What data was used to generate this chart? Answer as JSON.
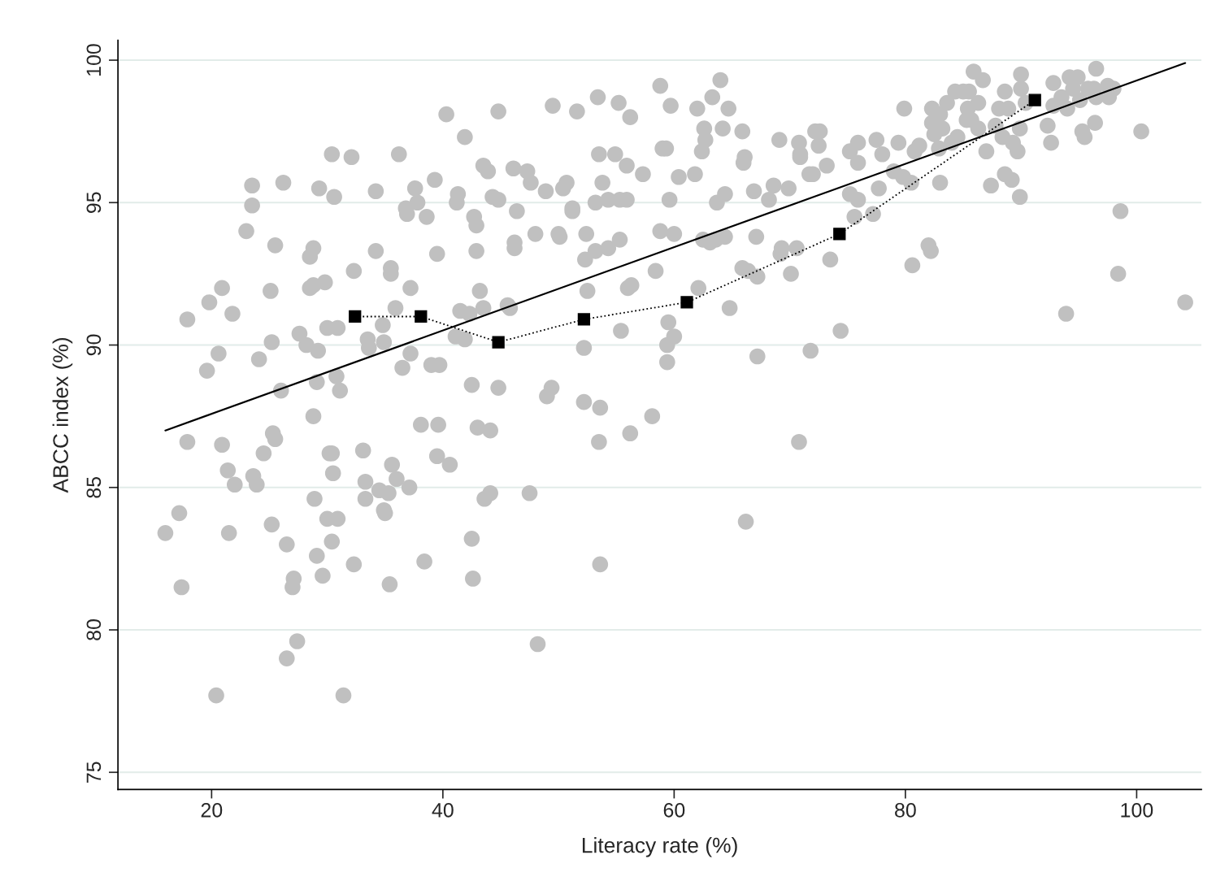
{
  "chart_data": {
    "type": "scatter",
    "xlabel": "Literacy rate (%)",
    "ylabel": "ABCC index (%)",
    "xlim": [
      11.9,
      105.6
    ],
    "ylim": [
      74.4,
      100.7
    ],
    "xticks": [
      20,
      40,
      60,
      80,
      100
    ],
    "yticks": [
      75,
      80,
      85,
      90,
      95,
      100
    ],
    "grid": "y",
    "series": [
      {
        "color": "#c0c0c0",
        "marker": "circle",
        "x": [
          16,
          17.2,
          17.4,
          17.9,
          17.9,
          19.6,
          19.8,
          20.6,
          20.9,
          20.9,
          20.4,
          21.4,
          21.5,
          21.8,
          22,
          23,
          23.5,
          23.5,
          23.6,
          23.9,
          24.1,
          24.5,
          25.1,
          25.2,
          25.3,
          25.5,
          25.2,
          25.5,
          26.2,
          26,
          26.5,
          26.5,
          27,
          27.1,
          27.4,
          27.6,
          28.2,
          28.5,
          28.5,
          28.8,
          28.8,
          28.8,
          28.9,
          29.1,
          29.1,
          29.2,
          29.3,
          29.6,
          29.8,
          30,
          30,
          30.2,
          30.4,
          30.4,
          30.5,
          30.4,
          30.6,
          30.8,
          30.9,
          30.9,
          31.1,
          31.4,
          32.1,
          32.3,
          32.3,
          33.1,
          33.3,
          33.3,
          33.5,
          33.6,
          34.2,
          34.2,
          34.5,
          34.8,
          34.9,
          34.9,
          35,
          35.3,
          35.4,
          35.5,
          35.5,
          35.6,
          35.9,
          36,
          36.2,
          36.5,
          36.8,
          36.9,
          37.2,
          37.2,
          37.1,
          37.6,
          37.8,
          38.1,
          38.4,
          38.6,
          39,
          39.3,
          39.5,
          39.5,
          39.6,
          39.7,
          40.3,
          40.6,
          41.1,
          41.2,
          41.3,
          41.5,
          41.9,
          41.9,
          42.3,
          42.5,
          42.5,
          42.6,
          42.7,
          42.9,
          42.9,
          43,
          43.2,
          43.5,
          43.5,
          43.6,
          43.9,
          44.1,
          44.1,
          44.3,
          44.8,
          44.8,
          44.8,
          45.6,
          45.8,
          46.2,
          46.2,
          46.1,
          46.4,
          47.3,
          47.5,
          47.6,
          48,
          48.2,
          48.9,
          49,
          49.4,
          49.5,
          50,
          50.1,
          50.4,
          50.7,
          51.2,
          51.2,
          51.6,
          52.2,
          52.2,
          52.3,
          52.4,
          52.5,
          53.2,
          53.2,
          53.4,
          53.5,
          53.5,
          53.6,
          53.6,
          53.8,
          54.3,
          54.3,
          54.9,
          55.2,
          55.3,
          55.4,
          55.3,
          55.9,
          55.9,
          56,
          56.2,
          56.2,
          56.3,
          57.3,
          58.1,
          58.4,
          58.8,
          58.8,
          59,
          59.3,
          59.4,
          59.4,
          59.5,
          59.6,
          59.7,
          60,
          60,
          60.4,
          61.8,
          62,
          62.1,
          62.4,
          62.5,
          62.6,
          62.7,
          63.1,
          63.3,
          63.6,
          63.7,
          64,
          64.2,
          64.4,
          64.4,
          64.7,
          64.8,
          65.9,
          65.9,
          66,
          66.1,
          66.2,
          66.4,
          66.9,
          67.1,
          67.2,
          67.2,
          68.2,
          68.6,
          69.1,
          69.2,
          69.3,
          69.9,
          70.1,
          70.6,
          70.8,
          70.9,
          70.9,
          70.8,
          71.7,
          71.8,
          72,
          72.2,
          72.6,
          72.5,
          73.2,
          73.5,
          74.4,
          75.2,
          75.2,
          75.6,
          75.9,
          75.9,
          75.9,
          77.2,
          77.5,
          77.7,
          78,
          79,
          79.4,
          79.8,
          79.9,
          80.5,
          80.6,
          80.8,
          81.2,
          82,
          82.2,
          82.3,
          82.3,
          82.5,
          82.9,
          83,
          83,
          83.2,
          83.6,
          84,
          84.3,
          84.5,
          85,
          85.3,
          85.5,
          85.4,
          85.7,
          85.9,
          86.3,
          86.3,
          86.7,
          87,
          87.4,
          87.8,
          88.1,
          88.4,
          88.6,
          88.6,
          88.9,
          89.2,
          89.3,
          89.7,
          89.9,
          89.9,
          90,
          90,
          90.4,
          92.3,
          92.6,
          92.8,
          92.8,
          93.5,
          93.9,
          94,
          94.2,
          94.5,
          94.9,
          95.1,
          95.3,
          95.5,
          95.8,
          96.3,
          96.4,
          96.5,
          96.5,
          97.5,
          97.6,
          98,
          98.4,
          98.6,
          100.4,
          104.2
        ],
        "values": [
          83.4,
          84.1,
          81.5,
          86.6,
          90.9,
          89.1,
          91.5,
          89.7,
          92,
          86.5,
          77.7,
          85.6,
          83.4,
          91.1,
          85.1,
          94,
          95.6,
          94.9,
          85.4,
          85.1,
          89.5,
          86.2,
          91.9,
          90.1,
          86.9,
          86.7,
          83.7,
          93.5,
          95.7,
          88.4,
          83,
          79,
          81.5,
          81.8,
          79.6,
          90.4,
          90,
          92,
          93.1,
          93.4,
          92.1,
          87.5,
          84.6,
          88.7,
          82.6,
          89.8,
          95.5,
          81.9,
          92.2,
          90.6,
          83.9,
          86.2,
          86.2,
          83.1,
          85.5,
          96.7,
          95.2,
          88.9,
          90.6,
          83.9,
          88.4,
          77.7,
          96.6,
          92.6,
          82.3,
          86.3,
          85.2,
          84.6,
          90.2,
          89.9,
          95.4,
          93.3,
          84.9,
          90.7,
          90.1,
          84.2,
          84.1,
          84.8,
          81.6,
          92.7,
          92.5,
          85.8,
          91.3,
          85.3,
          96.7,
          89.2,
          94.8,
          94.6,
          92,
          89.7,
          85,
          95.5,
          95,
          87.2,
          82.4,
          94.5,
          89.3,
          95.8,
          93.2,
          86.1,
          87.2,
          89.3,
          98.1,
          85.8,
          90.3,
          95,
          95.3,
          91.2,
          97.3,
          90.2,
          91.1,
          88.6,
          83.2,
          81.8,
          94.5,
          93.3,
          94.2,
          87.1,
          91.9,
          96.3,
          91.3,
          84.6,
          96.1,
          87,
          84.8,
          95.2,
          95.1,
          98.2,
          88.5,
          91.4,
          91.3,
          93.4,
          93.6,
          96.2,
          94.7,
          96.1,
          84.8,
          95.7,
          93.9,
          79.5,
          95.4,
          88.2,
          88.5,
          98.4,
          93.9,
          93.8,
          95.5,
          95.7,
          94.8,
          94.7,
          98.2,
          89.9,
          88,
          93,
          93.9,
          91.9,
          93.3,
          95,
          98.7,
          96.7,
          86.6,
          82.3,
          87.8,
          95.7,
          95.1,
          93.4,
          96.7,
          98.5,
          95.1,
          90.5,
          93.7,
          95.1,
          96.3,
          92,
          98,
          86.9,
          92.1,
          96,
          87.5,
          92.6,
          94,
          99.1,
          96.9,
          96.9,
          89.4,
          90,
          90.8,
          95.1,
          98.4,
          93.9,
          90.3,
          95.9,
          96,
          98.3,
          92,
          96.8,
          93.7,
          97.6,
          97.2,
          93.6,
          98.7,
          93.7,
          95,
          99.3,
          97.6,
          95.3,
          93.8,
          98.3,
          91.3,
          97.5,
          92.7,
          96.4,
          96.6,
          83.8,
          92.6,
          95.4,
          93.8,
          89.6,
          92.4,
          95.1,
          95.6,
          97.2,
          93.2,
          93.4,
          95.5,
          92.5,
          93.4,
          97.1,
          96.7,
          96.6,
          86.6,
          96,
          89.8,
          96,
          97.5,
          97.5,
          97,
          96.3,
          93,
          90.5,
          96.8,
          95.3,
          94.5,
          95.1,
          97.1,
          96.4,
          94.6,
          97.2,
          95.5,
          96.7,
          96.1,
          97.1,
          95.9,
          98.3,
          95.7,
          92.8,
          96.8,
          97,
          93.5,
          93.3,
          97.8,
          98.3,
          97.4,
          96.9,
          98.1,
          95.7,
          97.6,
          98.5,
          97.1,
          98.9,
          97.3,
          98.9,
          97.9,
          98.9,
          98.3,
          97.9,
          99.6,
          98.5,
          97.6,
          99.3,
          96.8,
          95.6,
          97.7,
          98.3,
          97.3,
          98.9,
          96,
          98.3,
          95.8,
          97.1,
          96.8,
          95.2,
          97.6,
          99.5,
          99,
          98.5,
          97.7,
          97.1,
          99.2,
          98.4,
          98.7,
          91.1,
          98.3,
          99.4,
          99,
          99.4,
          98.6,
          97.5,
          97.3,
          99,
          99,
          97.8,
          99.7,
          98.7,
          99.1,
          98.7,
          99,
          92.5,
          94.7,
          97.5,
          91.5
        ]
      },
      {
        "type": "line",
        "color": "#000000",
        "marker": "none",
        "line_style": "solid",
        "x": [
          16,
          104.2
        ],
        "values": [
          87.0,
          99.9
        ]
      },
      {
        "type": "line",
        "color": "#000000",
        "marker": "square",
        "line_style": "dotted",
        "x": [
          32.4,
          38.1,
          44.8,
          52.2,
          61.1,
          74.3,
          91.2
        ],
        "values": [
          91.0,
          91.0,
          90.1,
          90.9,
          91.5,
          93.9,
          98.6
        ]
      }
    ]
  }
}
